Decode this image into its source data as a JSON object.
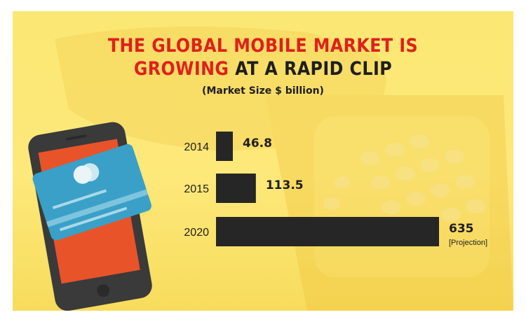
{
  "title": {
    "line1": "THE GLOBAL MOBILE MARKET IS",
    "line2_highlight": "GROWING",
    "line2_rest": " AT A RAPID CLIP"
  },
  "subtitle": "(Market Size $ billion)",
  "colors": {
    "background": "#fde87a",
    "title_red": "#e0201c",
    "bar": "#262626",
    "phone_body": "#3a3a3a",
    "phone_screen": "#e8532a",
    "card": "#3aa0c8"
  },
  "chart_data": {
    "type": "bar",
    "orientation": "horizontal",
    "categories": [
      "2014",
      "2015",
      "2020"
    ],
    "values": [
      46.8,
      113.5,
      635
    ],
    "value_labels": [
      "46.8",
      "113.5",
      "635"
    ],
    "annotations": [
      {
        "category": "2020",
        "text": "[Projection]"
      }
    ],
    "title": "THE GLOBAL MOBILE MARKET IS GROWING AT A RAPID CLIP",
    "subtitle": "(Market Size $ billion)",
    "xlabel": "",
    "ylabel": "",
    "xlim": [
      0,
      635
    ],
    "grid": false
  },
  "illustration": {
    "foreground": "smartphone-with-credit-card",
    "background": "payment-terminal"
  }
}
